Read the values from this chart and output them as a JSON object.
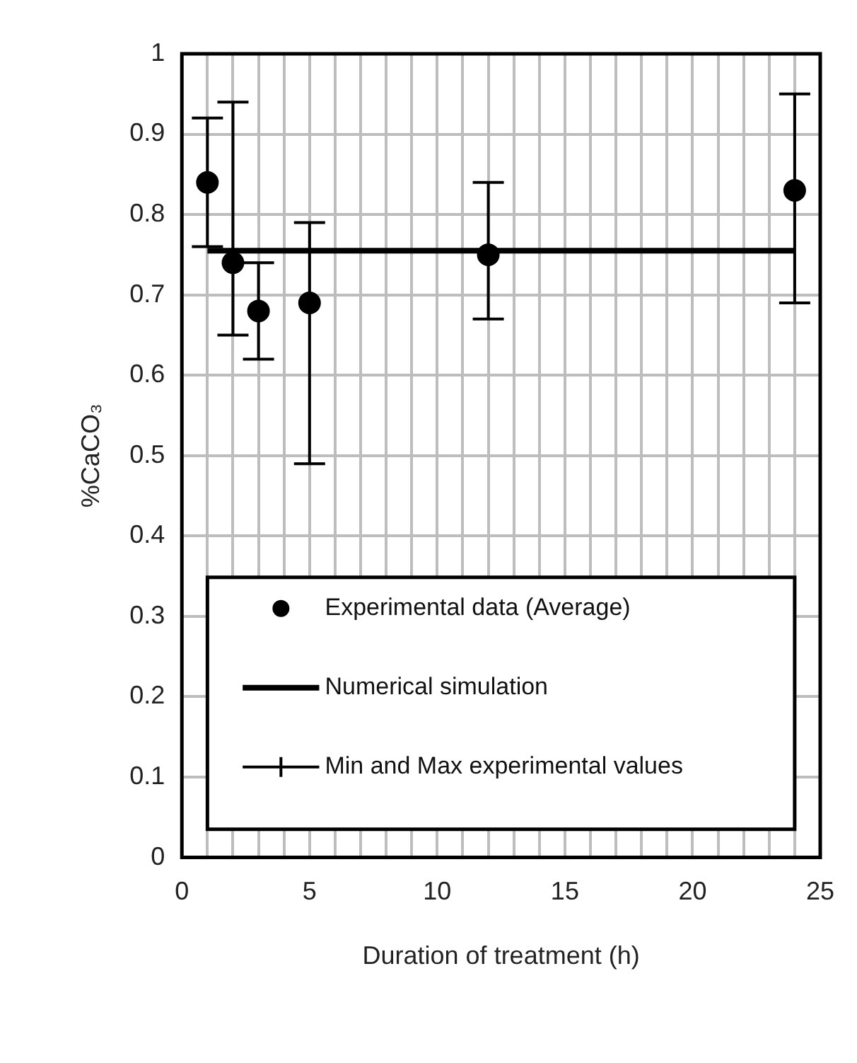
{
  "chart_data": {
    "type": "scatter",
    "xlabel": "Duration of treatment (h)",
    "ylabel": "%CaCO₃",
    "xlim": [
      0,
      25
    ],
    "xticks": [
      0,
      {
        "value": 1,
        "label": null
      },
      {
        "value": 2,
        "label": null
      },
      {
        "value": 3,
        "label": null
      },
      {
        "value": 4,
        "label": null
      },
      5,
      {
        "value": 6,
        "label": null
      },
      {
        "value": 7,
        "label": null
      },
      {
        "value": 8,
        "label": null
      },
      {
        "value": 9,
        "label": null
      },
      10,
      {
        "value": 11,
        "label": null
      },
      {
        "value": 12,
        "label": null
      },
      {
        "value": 13,
        "label": null
      },
      {
        "value": 14,
        "label": null
      },
      15,
      {
        "value": 16,
        "label": null
      },
      {
        "value": 17,
        "label": null
      },
      {
        "value": 18,
        "label": null
      },
      {
        "value": 19,
        "label": null
      },
      20,
      {
        "value": 21,
        "label": null
      },
      {
        "value": 22,
        "label": null
      },
      {
        "value": 23,
        "label": null
      },
      {
        "value": 24,
        "label": null
      },
      25
    ],
    "ylim": [
      0,
      1
    ],
    "yticks": [
      0,
      0.1,
      0.2,
      0.3,
      0.4,
      0.5,
      0.6,
      0.7,
      0.8,
      0.9,
      1
    ],
    "grid": true,
    "legend": "bottom",
    "series": [
      {
        "name": "Experimental data (Average)",
        "marker": "circle",
        "color": "#000000",
        "x": [
          1,
          2,
          3,
          5,
          12,
          24
        ],
        "values": [
          0.84,
          0.74,
          0.68,
          0.69,
          0.75,
          0.83
        ],
        "errors": [
          [
            0.76,
            0.92
          ],
          [
            0.65,
            0.94
          ],
          [
            0.62,
            0.74
          ],
          [
            0.49,
            0.79
          ],
          [
            0.67,
            0.84
          ],
          [
            0.69,
            0.95
          ]
        ]
      },
      {
        "name": "Numerical simulation",
        "type": "line",
        "marker": "none",
        "color": "#000000",
        "x": [
          1,
          24
        ],
        "values": [
          0.755,
          0.755
        ]
      },
      {
        "name": "Min and Max experimental values",
        "type": "scatter",
        "marker": "cross",
        "color": "#000000"
      }
    ]
  }
}
